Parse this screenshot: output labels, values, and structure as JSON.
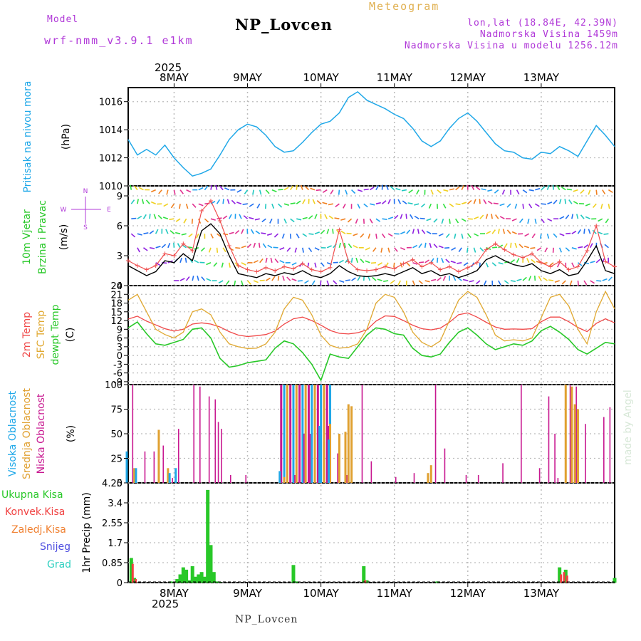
{
  "header": {
    "model_label": "Model",
    "model_value": "wrf-nmm_v3.9.1 e1km",
    "product": "Meteogram",
    "station": "NP_Lovcen",
    "coords": "lon,lat (18.84E, 42.39N)",
    "elevation": "Nadmorska Visina 1459m",
    "model_elevation": "Nadmorska Visina u modelu 1256.12m",
    "footer_station": "NP_Lovcen",
    "credit": "made by Angel"
  },
  "time_axis": {
    "year": "2025",
    "days": [
      "8MAY",
      "9MAY",
      "10MAY",
      "11MAY",
      "12MAY",
      "13MAY"
    ],
    "range_hours": [
      -15,
      144
    ]
  },
  "colors": {
    "pressure": "#20a8e8",
    "temp2m": "#f04848",
    "sfc_temp": "#e0a830",
    "dewpt": "#28c828",
    "wind_speed": "#000000",
    "wind_gust": "#f05050",
    "high_cloud": "#20a8e8",
    "mid_cloud": "#e0a030",
    "low_cloud": "#c81890",
    "total_precip": "#28c828",
    "conv_precip": "#f04040",
    "frozen": "#f08030",
    "snow": "#5050e0",
    "hail": "#30d0c0",
    "purple_text": "#b038d8"
  },
  "chart_data": [
    {
      "type": "line",
      "panel": "pressure",
      "ylabel_left": "Pritisak na nivou mora",
      "ylabel_unit": "(hPa)",
      "ylim": [
        1010,
        1017
      ],
      "yticks": [
        "1010",
        "1012",
        "1014",
        "1016"
      ],
      "grid": true,
      "series": [
        {
          "x": [
            -15,
            -12,
            -9,
            -6,
            -3,
            0,
            3,
            6,
            9,
            12,
            15,
            18,
            21,
            24,
            27,
            30,
            33,
            36,
            39,
            42,
            45,
            48,
            51,
            54,
            57,
            60,
            63,
            66,
            69,
            72,
            75,
            78,
            81,
            84,
            87,
            90,
            93,
            96,
            99,
            102,
            105,
            108,
            111,
            114,
            117,
            120,
            123,
            126,
            129,
            132,
            135,
            138,
            141,
            144
          ],
          "values": [
            1013.3,
            1012.2,
            1012.6,
            1012.2,
            1012.9,
            1012.0,
            1011.3,
            1010.7,
            1010.9,
            1011.2,
            1012.2,
            1013.3,
            1014.0,
            1014.4,
            1014.2,
            1013.6,
            1012.8,
            1012.4,
            1012.5,
            1013.1,
            1013.8,
            1014.4,
            1014.6,
            1015.2,
            1016.3,
            1016.7,
            1016.1,
            1015.8,
            1015.5,
            1015.1,
            1014.8,
            1014.1,
            1013.2,
            1012.8,
            1013.2,
            1014.1,
            1014.8,
            1015.2,
            1014.6,
            1013.8,
            1013.0,
            1012.5,
            1012.4,
            1012.0,
            1011.9,
            1012.4,
            1012.3,
            1012.8,
            1012.5,
            1012.1,
            1013.2,
            1014.3,
            1013.6,
            1012.8
          ]
        }
      ]
    },
    {
      "type": "line",
      "panel": "wind",
      "ylabel_left": "10m Vjetar",
      "ylabel_left2": "Brzina i Pravac",
      "ylabel_unit": "(m/s)",
      "compass_n": "N",
      "compass_w": "W",
      "compass_e": "E",
      "compass_s": "S",
      "ylim": [
        0,
        10
      ],
      "yticks": [
        "0",
        "3",
        "6",
        "9"
      ],
      "grid": true,
      "series": [
        {
          "name": "speed",
          "x": [
            -15,
            -12,
            -9,
            -6,
            -3,
            0,
            3,
            6,
            9,
            12,
            15,
            18,
            21,
            24,
            27,
            30,
            33,
            36,
            39,
            42,
            45,
            48,
            51,
            54,
            57,
            60,
            63,
            66,
            69,
            72,
            75,
            78,
            81,
            84,
            87,
            90,
            93,
            96,
            99,
            102,
            105,
            108,
            111,
            114,
            117,
            120,
            123,
            126,
            129,
            132,
            135,
            138,
            141,
            144
          ],
          "values": [
            2.0,
            1.5,
            1.0,
            1.4,
            2.5,
            2.3,
            3.2,
            2.5,
            5.5,
            6.2,
            5.2,
            3.0,
            1.2,
            1.0,
            0.8,
            1.2,
            1.0,
            1.3,
            1.1,
            1.5,
            1.0,
            0.8,
            1.2,
            2.0,
            1.4,
            1.0,
            0.9,
            1.0,
            1.2,
            1.0,
            1.4,
            1.8,
            1.2,
            1.5,
            1.0,
            1.2,
            0.8,
            1.1,
            1.5,
            2.6,
            3.0,
            2.5,
            2.1,
            1.9,
            2.2,
            1.5,
            1.2,
            1.6,
            1.0,
            1.2,
            2.5,
            4.0,
            1.5,
            1.2
          ]
        },
        {
          "name": "gust",
          "x": [
            -15,
            -12,
            -9,
            -6,
            -3,
            0,
            3,
            6,
            9,
            12,
            15,
            18,
            21,
            24,
            27,
            30,
            33,
            36,
            39,
            42,
            45,
            48,
            51,
            54,
            57,
            60,
            63,
            66,
            69,
            72,
            75,
            78,
            81,
            84,
            87,
            90,
            93,
            96,
            99,
            102,
            105,
            108,
            111,
            114,
            117,
            120,
            123,
            126,
            129,
            132,
            135,
            138,
            141,
            144
          ],
          "values": [
            2.5,
            2.0,
            1.6,
            2.0,
            3.2,
            3.0,
            4.2,
            3.5,
            7.5,
            8.5,
            6.5,
            4.0,
            2.0,
            1.6,
            1.4,
            1.8,
            1.5,
            1.9,
            1.7,
            2.2,
            1.6,
            1.4,
            1.8,
            5.6,
            2.4,
            1.6,
            1.5,
            1.6,
            1.9,
            1.7,
            2.2,
            2.6,
            1.9,
            2.3,
            1.6,
            1.9,
            1.4,
            1.8,
            2.3,
            3.6,
            4.2,
            3.6,
            3.1,
            2.8,
            3.2,
            2.3,
            1.9,
            2.4,
            1.6,
            1.9,
            3.5,
            6.0,
            2.4,
            1.9
          ]
        }
      ]
    },
    {
      "type": "line",
      "panel": "temperature",
      "ylabel_left": "2m Temp",
      "ylabel_left2": "SFC Temp",
      "ylabel_left3": "dewpt Temp",
      "ylabel_unit": "(C)",
      "ylim": [
        -10,
        24
      ],
      "yticks": [
        "-9",
        "-6",
        "-3",
        "0",
        "3",
        "6",
        "9",
        "12",
        "15",
        "18",
        "21",
        "24"
      ],
      "grid": true,
      "series": [
        {
          "name": "2m",
          "x": [
            -15,
            -12,
            -9,
            -6,
            -3,
            0,
            3,
            6,
            9,
            12,
            15,
            18,
            21,
            24,
            27,
            30,
            33,
            36,
            39,
            42,
            45,
            48,
            51,
            54,
            57,
            60,
            63,
            66,
            69,
            72,
            75,
            78,
            81,
            84,
            87,
            90,
            93,
            96,
            99,
            102,
            105,
            108,
            111,
            114,
            117,
            120,
            123,
            126,
            129,
            132,
            135,
            138,
            141,
            144
          ],
          "values": [
            12.5,
            13.5,
            11.8,
            10.5,
            9.2,
            8.4,
            9.0,
            10.8,
            11.2,
            10.8,
            9.8,
            8.2,
            7.0,
            6.5,
            6.8,
            7.2,
            8.4,
            10.8,
            12.6,
            13.2,
            12.0,
            10.4,
            8.6,
            7.6,
            7.4,
            7.8,
            8.8,
            11.8,
            13.6,
            13.4,
            12.0,
            10.4,
            9.2,
            8.8,
            9.4,
            11.4,
            14.0,
            14.6,
            13.2,
            11.4,
            9.8,
            9.0,
            9.1,
            9.0,
            9.2,
            11.6,
            13.2,
            13.2,
            11.6,
            9.6,
            8.2,
            11.0,
            12.6,
            11.2
          ]
        },
        {
          "name": "sfc",
          "x": [
            -15,
            -12,
            -9,
            -6,
            -3,
            0,
            3,
            6,
            9,
            12,
            15,
            18,
            21,
            24,
            27,
            30,
            33,
            36,
            39,
            42,
            45,
            48,
            51,
            54,
            57,
            60,
            63,
            66,
            69,
            72,
            75,
            78,
            81,
            84,
            87,
            90,
            93,
            96,
            99,
            102,
            105,
            108,
            111,
            114,
            117,
            120,
            123,
            126,
            129,
            132,
            135,
            138,
            141,
            144
          ],
          "values": [
            19.0,
            21.0,
            15.0,
            9.0,
            7.2,
            6.0,
            8.0,
            15.0,
            16.0,
            14.0,
            8.0,
            4.0,
            3.0,
            2.4,
            2.5,
            4.0,
            8.0,
            16.0,
            20.0,
            19.0,
            14.0,
            7.0,
            3.5,
            2.5,
            2.8,
            4.0,
            9.0,
            18.0,
            21.0,
            20.0,
            15.0,
            8.0,
            4.5,
            3.0,
            5.0,
            12.0,
            19.0,
            22.0,
            20.0,
            14.0,
            7.0,
            5.0,
            5.4,
            5.0,
            6.0,
            13.0,
            20.0,
            21.0,
            17.0,
            9.0,
            4.0,
            15.0,
            22.0,
            16.0
          ]
        },
        {
          "name": "dewpt",
          "x": [
            -15,
            -12,
            -9,
            -6,
            -3,
            0,
            3,
            6,
            9,
            12,
            15,
            18,
            21,
            24,
            27,
            30,
            33,
            36,
            39,
            42,
            45,
            48,
            51,
            54,
            57,
            60,
            63,
            66,
            69,
            72,
            75,
            78,
            81,
            84,
            87,
            90,
            93,
            96,
            99,
            102,
            105,
            108,
            111,
            114,
            117,
            120,
            123,
            126,
            129,
            132,
            135,
            138,
            141,
            144
          ],
          "values": [
            9.5,
            11.5,
            7.5,
            4.0,
            3.5,
            4.5,
            5.5,
            9.0,
            9.5,
            6.0,
            -1.0,
            -4.0,
            -3.5,
            -2.5,
            -2.0,
            -1.5,
            2.5,
            5.0,
            4.0,
            1.0,
            -3.0,
            -8.5,
            0.5,
            -0.5,
            -1.0,
            3.0,
            7.0,
            9.5,
            9.0,
            7.5,
            7.0,
            2.5,
            0.0,
            -0.5,
            0.5,
            4.5,
            8.0,
            9.5,
            7.0,
            4.0,
            2.0,
            3.0,
            4.0,
            3.5,
            5.0,
            8.5,
            10.0,
            8.0,
            5.5,
            2.0,
            0.5,
            2.5,
            4.5,
            4.0
          ]
        }
      ]
    },
    {
      "type": "bar",
      "panel": "cloud",
      "ylabel_left": "Visoka Oblacnost",
      "ylabel_left2": "Srednja Oblacnost",
      "ylabel_left3": "Niska Oblacnost",
      "ylabel_unit": "(%)",
      "ylim": [
        0,
        100
      ],
      "yticks": [
        "0",
        "25",
        "50",
        "75",
        "100"
      ],
      "grid": true,
      "series": [
        {
          "name": "low",
          "x": [
            -14,
            -10,
            -7,
            -4,
            -1,
            1,
            6,
            8,
            11,
            13,
            14,
            15,
            18,
            23,
            39,
            42,
            44,
            47,
            50,
            53,
            56,
            61,
            64,
            72,
            78,
            85,
            88,
            95,
            99,
            107,
            113,
            119,
            122,
            124,
            125,
            129,
            131,
            134,
            140,
            142
          ],
          "values": [
            100,
            32,
            32,
            38,
            5,
            55,
            100,
            98,
            88,
            85,
            62,
            55,
            8,
            8,
            8,
            50,
            50,
            52,
            58,
            30,
            8,
            100,
            22,
            6,
            10,
            100,
            35,
            8,
            8,
            20,
            100,
            15,
            88,
            50,
            5,
            100,
            98,
            60,
            67,
            77
          ]
        },
        {
          "name": "mid",
          "x": [
            -13,
            -5,
            -2,
            36,
            49,
            51,
            54,
            56,
            57,
            58,
            83,
            84,
            128,
            130,
            131,
            132
          ],
          "values": [
            15,
            54,
            15,
            6,
            42,
            60,
            50,
            52,
            80,
            78,
            10,
            18,
            100,
            98,
            80,
            75
          ]
        },
        {
          "name": "high",
          "x": [
            -15,
            -12,
            -1,
            1,
            35,
            48,
            51
          ],
          "values": [
            32,
            15,
            10,
            15,
            12,
            58,
            44
          ]
        },
        {
          "name": "overcast_block",
          "x_start": 35,
          "x_end": 51,
          "values": [
            100
          ]
        }
      ]
    },
    {
      "type": "bar",
      "panel": "precipitation",
      "ylabel_left": "Ukupna Kisa",
      "ylabel_left2": "Konvek.Kisa",
      "ylabel_left3": "Zaledj.Kisa",
      "ylabel_left4": "Snijeg",
      "ylabel_left5": "Grad",
      "ylabel_unit": "1hr Precip (mm)",
      "ylim": [
        0,
        4.25
      ],
      "yticks": [
        "0",
        "0.85",
        "1.7",
        "2.55",
        "3.4",
        "4.25"
      ],
      "grid": true,
      "series": [
        {
          "name": "total",
          "x": [
            -14,
            -13,
            -1,
            1,
            2,
            3,
            4,
            5,
            6,
            7,
            8,
            9,
            10,
            11,
            12,
            13,
            14,
            15,
            39,
            40,
            62,
            63,
            86,
            126,
            128,
            144
          ],
          "values": [
            1.05,
            0.2,
            0.05,
            0.15,
            0.35,
            0.65,
            0.55,
            0.1,
            0.7,
            0.25,
            0.35,
            0.45,
            0.25,
            3.95,
            1.6,
            0.45,
            0.05,
            0.02,
            0.75,
            0.05,
            0.7,
            0.1,
            0.05,
            0.65,
            0.55,
            0.2
          ]
        },
        {
          "name": "convective",
          "x": [
            -14,
            -13,
            62,
            126,
            127,
            128
          ],
          "values": [
            0.8,
            0.15,
            0.1,
            0.35,
            0.45,
            0.3
          ]
        }
      ]
    }
  ]
}
